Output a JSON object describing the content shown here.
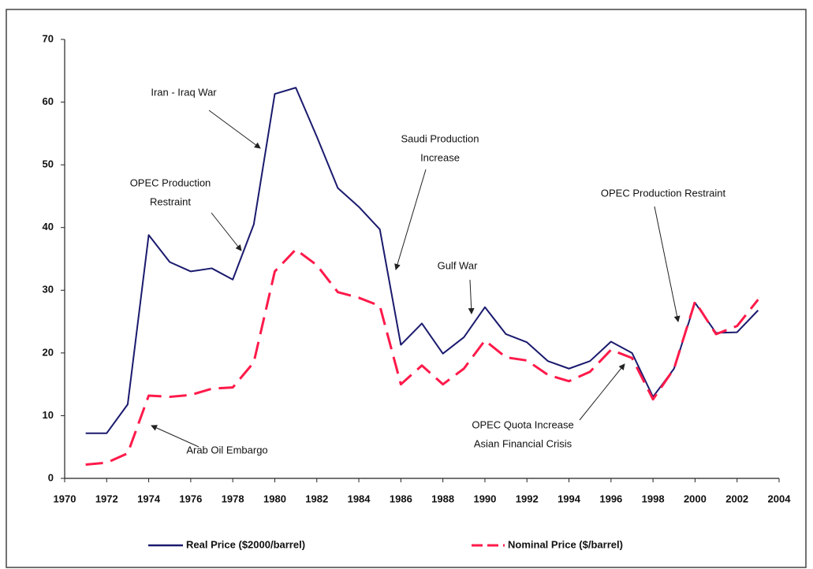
{
  "chart_data": {
    "type": "line",
    "x": [
      1971,
      1972,
      1973,
      1974,
      1975,
      1976,
      1977,
      1978,
      1979,
      1980,
      1981,
      1982,
      1983,
      1984,
      1985,
      1986,
      1987,
      1988,
      1989,
      1990,
      1991,
      1992,
      1993,
      1994,
      1995,
      1996,
      1997,
      1998,
      1999,
      2000,
      2001,
      2002,
      2003
    ],
    "series": [
      {
        "name": "Real Price ($2000/barrel)",
        "color": "#1a1a6e",
        "dash": false,
        "values": [
          7.2,
          7.2,
          11.8,
          38.8,
          34.5,
          33.0,
          33.5,
          31.7,
          40.5,
          61.3,
          62.3,
          54.5,
          46.3,
          43.3,
          39.7,
          21.3,
          24.7,
          19.9,
          22.5,
          27.3,
          23.0,
          21.7,
          18.7,
          17.5,
          18.7,
          21.8,
          20.0,
          13.0,
          17.5,
          28.0,
          23.2,
          23.3,
          26.8
        ]
      },
      {
        "name": "Nominal Price ($/barrel)",
        "color": "#ff1a4a",
        "dash": true,
        "values": [
          2.2,
          2.5,
          4.0,
          13.2,
          13.0,
          13.3,
          14.3,
          14.5,
          18.5,
          33.0,
          36.5,
          34.0,
          29.7,
          28.8,
          27.5,
          15.0,
          18.0,
          15.0,
          17.5,
          22.0,
          19.3,
          18.8,
          16.5,
          15.5,
          17.0,
          20.5,
          19.2,
          12.6,
          17.5,
          28.2,
          23.0,
          24.3,
          28.5
        ]
      }
    ],
    "xlim": [
      1970,
      2004
    ],
    "xticks": [
      1970,
      1972,
      1974,
      1976,
      1978,
      1980,
      1982,
      1984,
      1986,
      1988,
      1990,
      1992,
      1994,
      1996,
      1998,
      2000,
      2002,
      2004
    ],
    "ylim": [
      0,
      70
    ],
    "yticks": [
      0,
      10,
      20,
      30,
      40,
      50,
      60,
      70
    ],
    "annotations": [
      {
        "lines": [
          "Iran - Iraq War"
        ]
      },
      {
        "lines": [
          "OPEC Production",
          "Restraint"
        ]
      },
      {
        "lines": [
          "Saudi Production",
          "Increase"
        ]
      },
      {
        "lines": [
          "Gulf War"
        ]
      },
      {
        "lines": [
          "OPEC Production Restraint"
        ]
      },
      {
        "lines": [
          "Arab Oil Embargo"
        ]
      },
      {
        "lines": [
          "OPEC Quota Increase",
          "Asian Financial Crisis"
        ]
      }
    ]
  }
}
